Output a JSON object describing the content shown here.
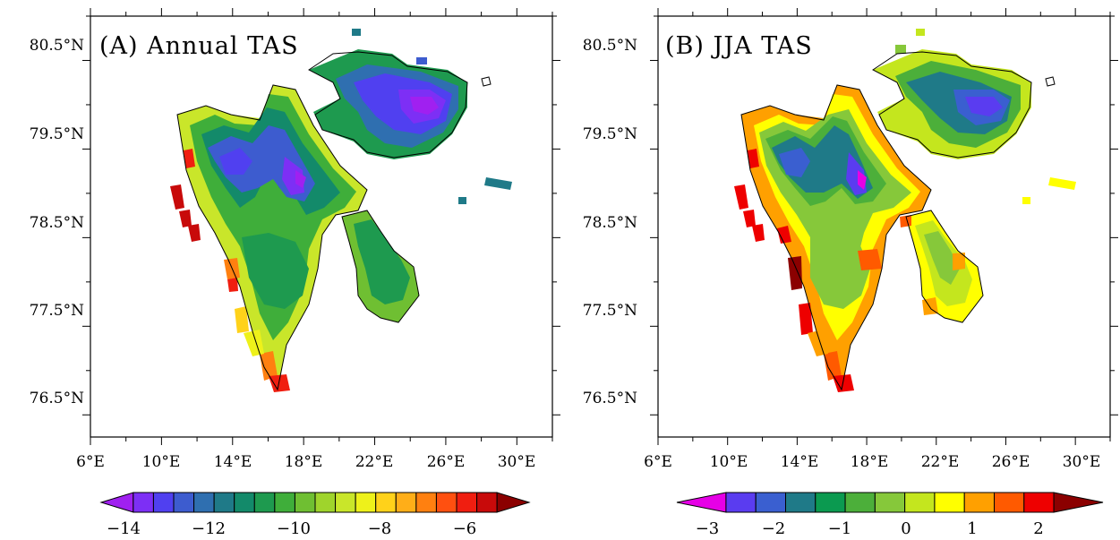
{
  "panels": [
    {
      "id": "A",
      "title": "(A) Annual TAS",
      "lat_ticks": [
        "80.5°N",
        "79.5°N",
        "78.5°N",
        "77.5°N",
        "76.5°N"
      ],
      "lon_ticks": [
        "6°E",
        "10°E",
        "14°E",
        "18°E",
        "22°E",
        "26°E",
        "30°E"
      ],
      "colorbar": {
        "colors": [
          "#a020f0",
          "#7d2ff5",
          "#5040f0",
          "#3d5ccf",
          "#2f6fb0",
          "#1f7a88",
          "#138a6a",
          "#1e9a4f",
          "#3fae3a",
          "#6fbf32",
          "#9fd42c",
          "#c9e62a",
          "#eef11a",
          "#ffd21a",
          "#ffae18",
          "#ff8010",
          "#ff5010",
          "#f01e10",
          "#c80a0a",
          "#8b0000"
        ],
        "labels": [
          "−14",
          "−12",
          "−10",
          "−8",
          "−6"
        ]
      }
    },
    {
      "id": "B",
      "title": "(B) JJA TAS",
      "lat_ticks": [
        "80.5°N",
        "79.5°N",
        "78.5°N",
        "77.5°N",
        "76.5°N"
      ],
      "lon_ticks": [
        "6°E",
        "10°E",
        "14°E",
        "18°E",
        "22°E",
        "26°E",
        "30°E"
      ],
      "colorbar": {
        "colors": [
          "#e600e6",
          "#5a3cf0",
          "#3a5fd0",
          "#1f7a88",
          "#0b9a50",
          "#4caf3a",
          "#86c83a",
          "#c4e61e",
          "#ffff00",
          "#ffa000",
          "#ff5a00",
          "#ee0000",
          "#8b0000"
        ],
        "labels": [
          "−3",
          "−2",
          "−1",
          "0",
          "1",
          "2"
        ]
      }
    }
  ]
}
